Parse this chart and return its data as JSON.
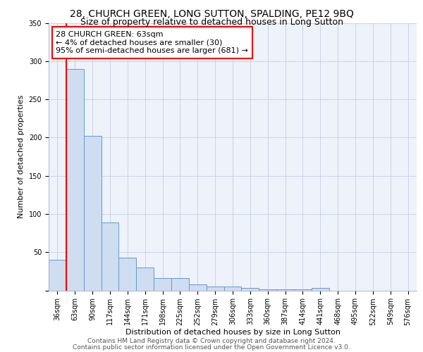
{
  "title": "28, CHURCH GREEN, LONG SUTTON, SPALDING, PE12 9BQ",
  "subtitle": "Size of property relative to detached houses in Long Sutton",
  "xlabel": "Distribution of detached houses by size in Long Sutton",
  "ylabel": "Number of detached properties",
  "categories": [
    "36sqm",
    "63sqm",
    "90sqm",
    "117sqm",
    "144sqm",
    "171sqm",
    "198sqm",
    "225sqm",
    "252sqm",
    "279sqm",
    "306sqm",
    "333sqm",
    "360sqm",
    "387sqm",
    "414sqm",
    "441sqm",
    "468sqm",
    "495sqm",
    "522sqm",
    "549sqm",
    "576sqm"
  ],
  "values": [
    40,
    290,
    202,
    89,
    43,
    30,
    16,
    16,
    8,
    5,
    5,
    3,
    1,
    1,
    1,
    3,
    0,
    0,
    0,
    0,
    0
  ],
  "bar_color": "#cfddf0",
  "bar_edge_color": "#6699cc",
  "red_line_index": 1,
  "annotation_line1": "28 CHURCH GREEN: 63sqm",
  "annotation_line2": "← 4% of detached houses are smaller (30)",
  "annotation_line3": "95% of semi-detached houses are larger (681) →",
  "ylim": [
    0,
    350
  ],
  "yticks": [
    0,
    50,
    100,
    150,
    200,
    250,
    300,
    350
  ],
  "footer_line1": "Contains HM Land Registry data © Crown copyright and database right 2024.",
  "footer_line2": "Contains public sector information licensed under the Open Government Licence v3.0.",
  "background_color": "#eef2fa",
  "grid_color": "#c5cde0",
  "title_fontsize": 10,
  "subtitle_fontsize": 9,
  "tick_fontsize": 7,
  "ylabel_fontsize": 8,
  "xlabel_fontsize": 8,
  "footer_fontsize": 6.5,
  "annotation_fontsize": 8
}
